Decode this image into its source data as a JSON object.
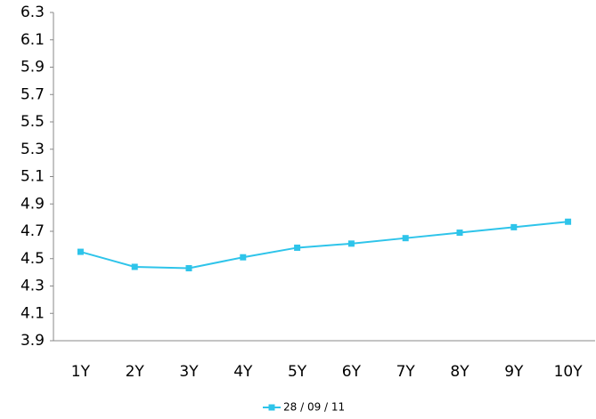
{
  "chart_data": {
    "type": "line",
    "categories": [
      "1Y",
      "2Y",
      "3Y",
      "4Y",
      "5Y",
      "6Y",
      "7Y",
      "8Y",
      "9Y",
      "10Y"
    ],
    "series": [
      {
        "name": "28 / 09 / 11",
        "color": "#2ec4ea",
        "values": [
          4.55,
          4.44,
          4.43,
          4.51,
          4.58,
          4.61,
          4.65,
          4.69,
          4.73,
          4.77
        ]
      }
    ],
    "ylim": [
      3.9,
      6.3
    ],
    "yticks": [
      3.9,
      4.1,
      4.3,
      4.5,
      4.7,
      4.9,
      5.1,
      5.3,
      5.5,
      5.7,
      5.9,
      6.1,
      6.3
    ],
    "grid": false,
    "legend": "bottom"
  }
}
